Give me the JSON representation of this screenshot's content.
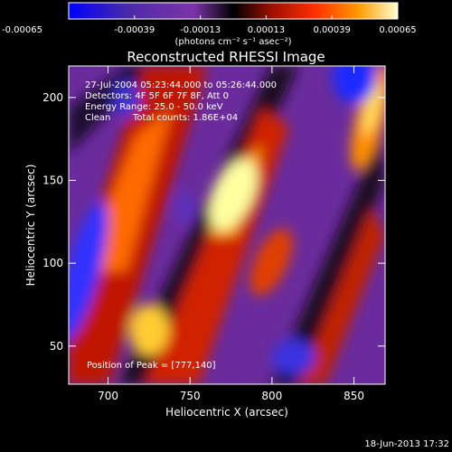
{
  "chart_data": {
    "type": "heatmap",
    "title": "Reconstructed RHESSI Image",
    "xlabel": "Heliocentric X (arcsec)",
    "ylabel": "Heliocentric Y (arcsec)",
    "xlim": [
      676,
      869
    ],
    "ylim": [
      27,
      219
    ],
    "x_ticks": [
      700,
      750,
      800,
      850
    ],
    "y_ticks": [
      50,
      100,
      150,
      200
    ],
    "colorbar": {
      "min": -0.00065,
      "max": 0.00065,
      "tick_values": [
        -0.00065,
        -0.00039,
        -0.00013,
        0.00013,
        0.00039,
        0.00065
      ],
      "tick_labels": [
        "-0.00065",
        "-0.00039",
        "-0.00013",
        "0.00013",
        "0.00039",
        "0.00065"
      ],
      "unit_label": "(photons cm⁻² s⁻¹ asec⁻²)",
      "colors": [
        "#0000ff",
        "#5a2a9e",
        "#7c34a8",
        "#000000",
        "#a01000",
        "#ff3000",
        "#ff9a00",
        "#ffffd0"
      ]
    },
    "annotations": {
      "time_range": "27-Jul-2004 05:23:44.000 to 05:26:44.000",
      "detectors": "Detectors: 4F 5F 6F 7F 8F, Att 0",
      "energy": "Energy Range: 25.0 - 50.0 keV",
      "clean_label": "Clean",
      "total_counts": "Total counts: 1.86E+04",
      "peak": "Position of Peak = [777,140]"
    },
    "peak_position": [
      777,
      140
    ],
    "timestamp": "18-Jun-2013 17:32"
  }
}
